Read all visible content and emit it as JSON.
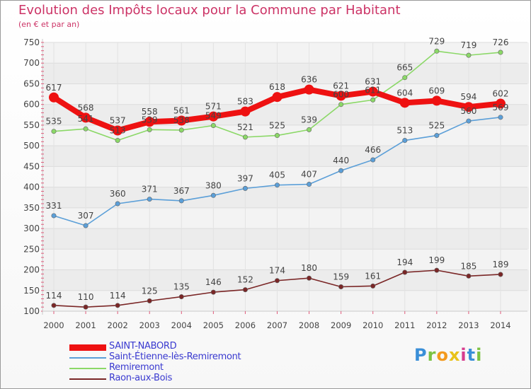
{
  "header": {
    "title": "Evolution des Impôts locaux pour la Commune par Habitant",
    "subtitle": "(en € et par an)"
  },
  "logo": {
    "text": "Proxiti",
    "colors": [
      "#3a8fd8",
      "#7cc242",
      "#f39a1e",
      "#e8c21a",
      "#d63b8e",
      "#3a8fd8",
      "#7cc242"
    ]
  },
  "chart_data": {
    "type": "line",
    "x": [
      2000,
      2001,
      2002,
      2003,
      2004,
      2005,
      2006,
      2007,
      2008,
      2009,
      2010,
      2011,
      2012,
      2013,
      2014
    ],
    "ylim": [
      100,
      750
    ],
    "yticks": [
      100,
      150,
      200,
      250,
      300,
      350,
      400,
      450,
      500,
      550,
      600,
      650,
      700,
      750
    ],
    "grid": true,
    "legend_position": "bottom-left",
    "series": [
      {
        "name": "SAINT-NABORD",
        "color": "#ee1111",
        "values": [
          617,
          568,
          537,
          558,
          561,
          571,
          583,
          618,
          636,
          621,
          631,
          604,
          609,
          594,
          602
        ]
      },
      {
        "name": "Saint-Étienne-lès-Remiremont",
        "color": "#5b9fd8",
        "values": [
          331,
          307,
          360,
          371,
          367,
          380,
          397,
          405,
          407,
          440,
          466,
          513,
          525,
          560,
          569
        ]
      },
      {
        "name": "Remiremont",
        "color": "#8bd867",
        "values": [
          535,
          541,
          513,
          539,
          538,
          549,
          521,
          525,
          539,
          600,
          611,
          665,
          729,
          719,
          726
        ]
      },
      {
        "name": "Raon-aux-Bois",
        "color": "#7a2626",
        "values": [
          114,
          110,
          114,
          125,
          135,
          146,
          152,
          174,
          180,
          159,
          161,
          194,
          199,
          185,
          189
        ]
      }
    ]
  }
}
